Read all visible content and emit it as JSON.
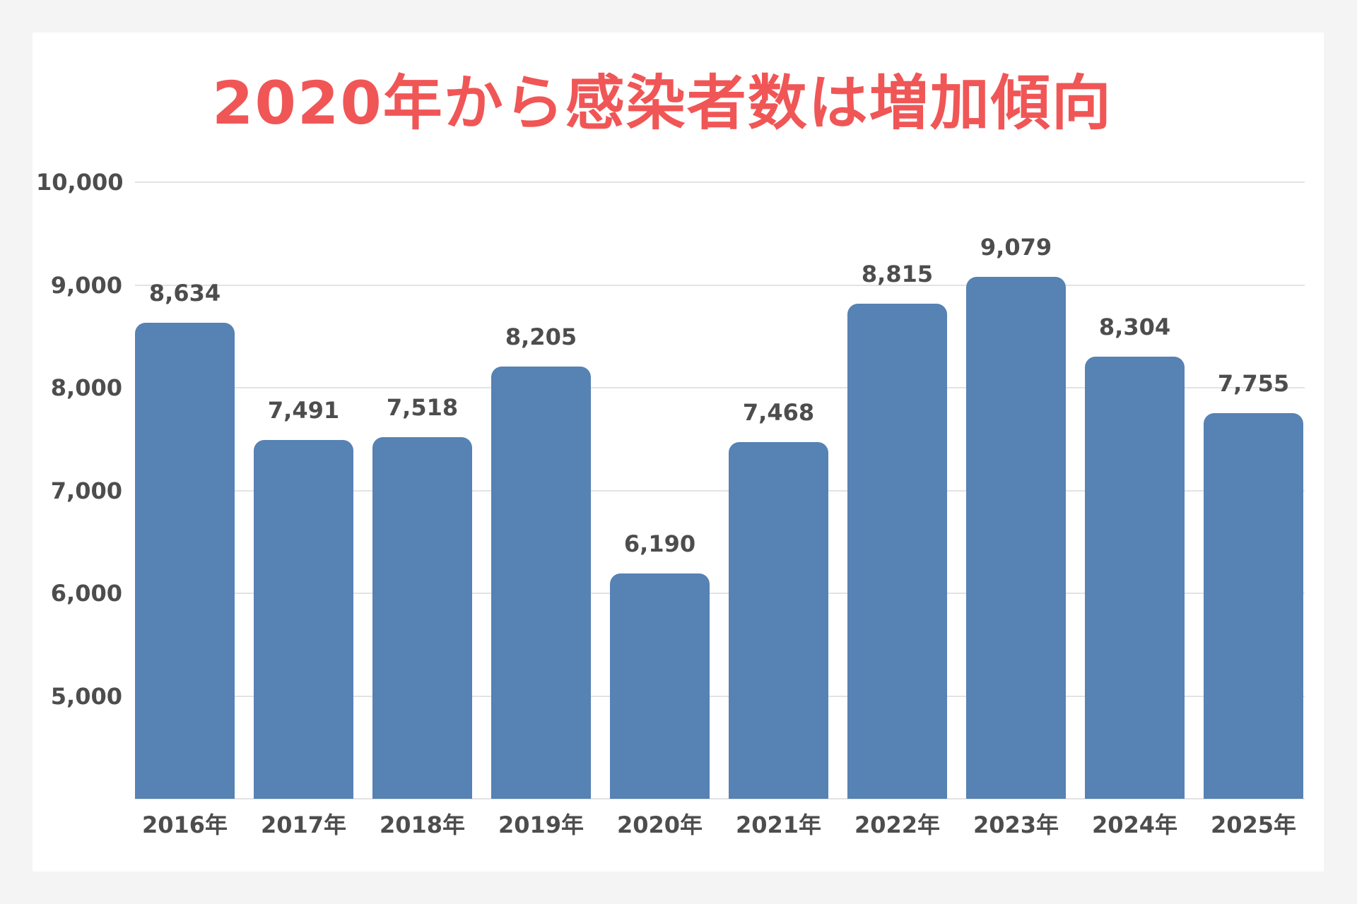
{
  "title": "2020年から感染者数は増加傾向",
  "colors": {
    "title": "#f05656",
    "bar": "#5682b4",
    "text": "#4d4d4d",
    "gridline": "#e3e3e3",
    "background": "#f4f4f4",
    "card": "#ffffff"
  },
  "y_axis": {
    "ticks": [
      {
        "value": 10000,
        "label": "10,000"
      },
      {
        "value": 9000,
        "label": "9,000"
      },
      {
        "value": 8000,
        "label": "8,000"
      },
      {
        "value": 7000,
        "label": "7,000"
      },
      {
        "value": 6000,
        "label": "6,000"
      },
      {
        "value": 5000,
        "label": "5,000"
      }
    ]
  },
  "bars": [
    {
      "category": "2016年",
      "value": 8634,
      "label": "8,634"
    },
    {
      "category": "2017年",
      "value": 7491,
      "label": "7,491"
    },
    {
      "category": "2018年",
      "value": 7518,
      "label": "7,518"
    },
    {
      "category": "2019年",
      "value": 8205,
      "label": "8,205"
    },
    {
      "category": "2020年",
      "value": 6190,
      "label": "6,190"
    },
    {
      "category": "2021年",
      "value": 7468,
      "label": "7,468"
    },
    {
      "category": "2022年",
      "value": 8815,
      "label": "8,815"
    },
    {
      "category": "2023年",
      "value": 9079,
      "label": "9,079"
    },
    {
      "category": "2024年",
      "value": 8304,
      "label": "8,304"
    },
    {
      "category": "2025年",
      "value": 7755,
      "label": "7,755"
    }
  ],
  "chart_data": {
    "type": "bar",
    "title": "2020年から感染者数は増加傾向",
    "categories": [
      "2016年",
      "2017年",
      "2018年",
      "2019年",
      "2020年",
      "2021年",
      "2022年",
      "2023年",
      "2024年",
      "2025年"
    ],
    "values": [
      8634,
      7491,
      7518,
      8205,
      6190,
      7468,
      8815,
      9079,
      8304,
      7755
    ],
    "data_labels": [
      "8,634",
      "7,491",
      "7,518",
      "8,205",
      "6,190",
      "7,468",
      "8,815",
      "9,079",
      "8,304",
      "7,755"
    ],
    "xlabel": "",
    "ylabel": "",
    "ylim": [
      4000,
      10000
    ],
    "yticks": [
      5000,
      6000,
      7000,
      8000,
      9000,
      10000
    ],
    "ytick_labels": [
      "5,000",
      "6,000",
      "7,000",
      "8,000",
      "9,000",
      "10,000"
    ],
    "grid": "horizontal",
    "legend": "none",
    "bar_color": "#5682b4"
  }
}
